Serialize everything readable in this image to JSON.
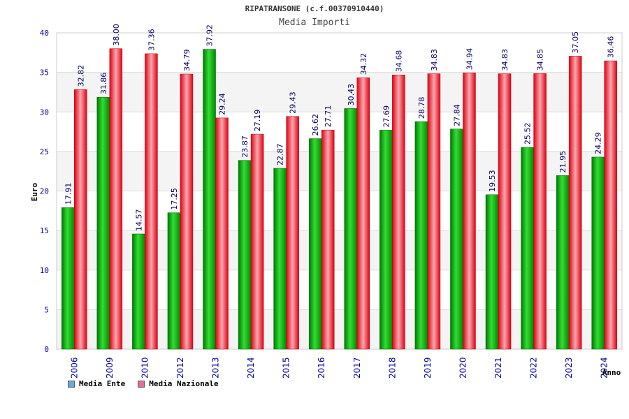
{
  "header": {
    "title": "RIPATRANSONE (c.f.00370910440)",
    "subtitle": "Media Importi"
  },
  "legend": {
    "items": [
      {
        "label": "Media Ente",
        "color": "#6fa8dc"
      },
      {
        "label": "Media Nazionale",
        "color": "#e06fa0"
      }
    ]
  },
  "chart_data": {
    "type": "bar",
    "title": "RIPATRANSONE (c.f.00370910440)",
    "subtitle": "Media Importi",
    "xlabel": "Anno",
    "ylabel": "Euro",
    "ylim": [
      0,
      40
    ],
    "yticks": [
      0,
      5,
      10,
      15,
      20,
      25,
      30,
      35,
      40
    ],
    "grid": true,
    "legend_position": "bottom-left",
    "categories": [
      "2006",
      "2009",
      "2010",
      "2012",
      "2013",
      "2014",
      "2015",
      "2016",
      "2017",
      "2018",
      "2019",
      "2020",
      "2021",
      "2022",
      "2023",
      "2024"
    ],
    "series": [
      {
        "name": "Media Ente",
        "color": "#00aa00",
        "values": [
          17.91,
          31.86,
          14.57,
          17.25,
          37.92,
          23.87,
          22.87,
          26.62,
          30.43,
          27.69,
          28.78,
          27.84,
          19.53,
          25.52,
          21.95,
          24.29
        ],
        "labels": [
          "17.91",
          "31.86",
          "14.57",
          "17.25",
          "37.92",
          "23.87",
          "22.87",
          "26.62",
          "30.43",
          "27.69",
          "28.78",
          "27.84",
          "19.53",
          "25.52",
          "21.95",
          "24.29"
        ]
      },
      {
        "name": "Media Nazionale",
        "color": "#ee1122",
        "values": [
          32.82,
          38.0,
          37.36,
          34.79,
          29.24,
          27.19,
          29.43,
          27.71,
          34.32,
          34.68,
          34.83,
          34.94,
          34.83,
          34.85,
          37.05,
          36.46
        ],
        "labels": [
          "32.82",
          "38.00",
          "37.36",
          "34.79",
          "29.24",
          "27.19",
          "29.43",
          "27.71",
          "34.32",
          "34.68",
          "34.83",
          "34.94",
          "34.83",
          "34.85",
          "37.05",
          "36.46"
        ]
      }
    ]
  }
}
